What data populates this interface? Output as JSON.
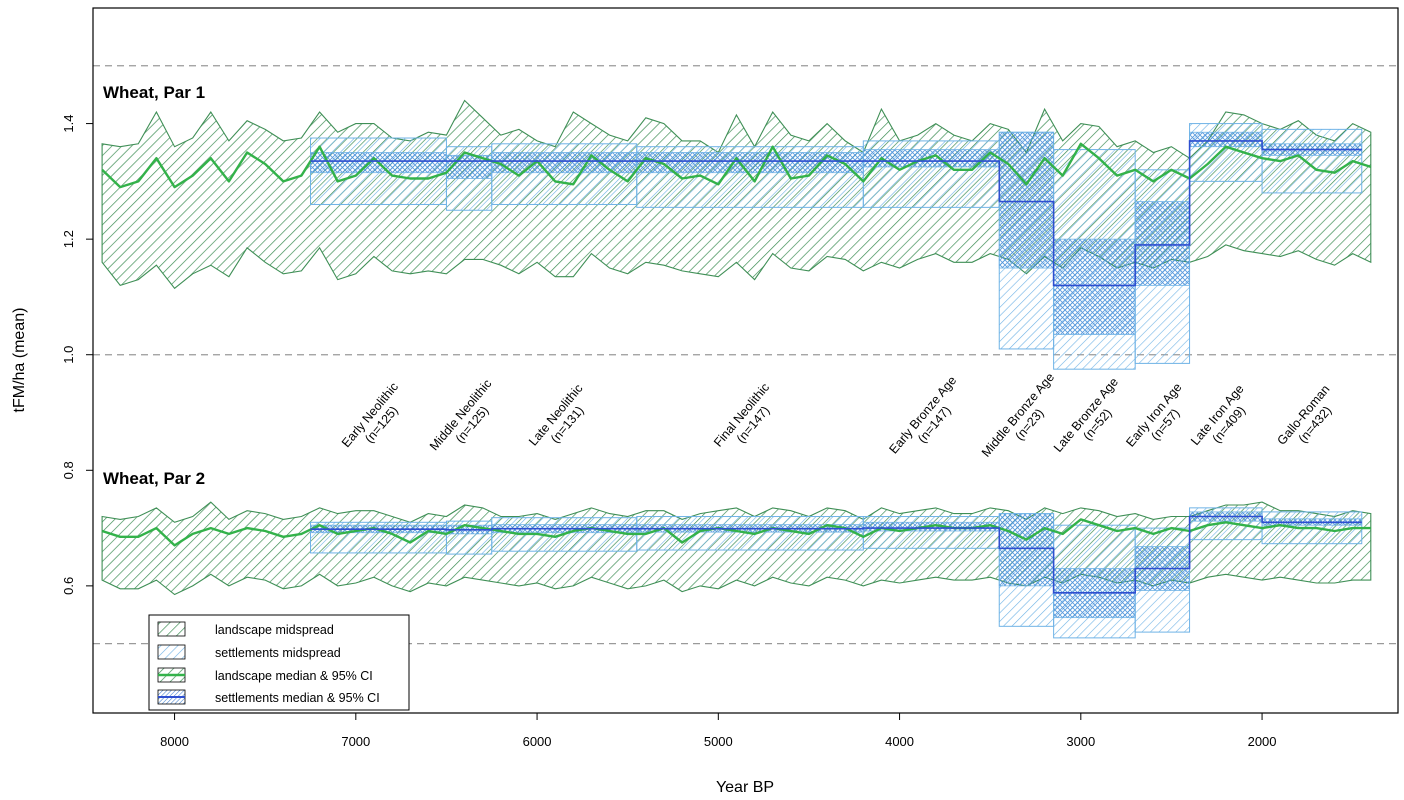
{
  "chart_data": {
    "type": "area",
    "xlabel": "Year BP",
    "ylabel": "tFM/ha (mean)",
    "xlim": [
      8450,
      1250
    ],
    "ylim": [
      0.38,
      1.6
    ],
    "x_reversed": true,
    "x_ticks": [
      8000,
      7000,
      6000,
      5000,
      4000,
      3000,
      2000
    ],
    "x_tick_labels": [
      "8000",
      "7000",
      "6000",
      "5000",
      "4000",
      "3000",
      "2000"
    ],
    "y_ticks": [
      0.6,
      0.8,
      1.0,
      1.2,
      1.4
    ],
    "y_tick_labels": [
      "0.6",
      "0.8",
      "1.0",
      "1.2",
      "1.4"
    ],
    "reference_lines": [
      0.5,
      1.0,
      1.5
    ],
    "colors": {
      "landscape_fill": "#3f8f56",
      "landscape_line": "#33b24a",
      "settlement_fill": "#6fb3e6",
      "settlement_line": "#2e4fd0",
      "reference": "#9a9a9a"
    },
    "periods": [
      {
        "name": "Early Neolithic",
        "n": "(n=125)",
        "start": 7250,
        "end": 6500
      },
      {
        "name": "Middle Neolithic",
        "n": "(n=125)",
        "start": 6500,
        "end": 6250
      },
      {
        "name": "Late Neolithic",
        "n": "(n=131)",
        "start": 6250,
        "end": 5450
      },
      {
        "name": "Final Neolithic",
        "n": "(n=147)",
        "start": 5450,
        "end": 4200
      },
      {
        "name": "Early Bronze Age",
        "n": "(n=147)",
        "start": 4200,
        "end": 3450
      },
      {
        "name": "Middle Bronze Age",
        "n": "(n=23)",
        "start": 3450,
        "end": 3150
      },
      {
        "name": "Late Bronze Age",
        "n": "(n=52)",
        "start": 3150,
        "end": 2700
      },
      {
        "name": "Early Iron Age",
        "n": "(n=57)",
        "start": 2700,
        "end": 2400
      },
      {
        "name": "Late Iron Age",
        "n": "(n=409)",
        "start": 2400,
        "end": 2000
      },
      {
        "name": "Gallo-Roman",
        "n": "(n=432)",
        "start": 2000,
        "end": 1450
      }
    ],
    "panels": [
      {
        "label": "Wheat, Par 1",
        "landscape": {
          "x": [
            8400,
            8300,
            8200,
            8100,
            8000,
            7900,
            7800,
            7700,
            7600,
            7500,
            7400,
            7300,
            7200,
            7100,
            7000,
            6900,
            6800,
            6700,
            6600,
            6500,
            6400,
            6300,
            6200,
            6100,
            6000,
            5900,
            5800,
            5700,
            5600,
            5500,
            5400,
            5300,
            5200,
            5100,
            5000,
            4900,
            4800,
            4700,
            4600,
            4500,
            4400,
            4300,
            4200,
            4100,
            4000,
            3900,
            3800,
            3700,
            3600,
            3500,
            3400,
            3300,
            3200,
            3100,
            3000,
            2900,
            2800,
            2700,
            2600,
            2500,
            2400,
            2300,
            2200,
            2100,
            2000,
            1900,
            1800,
            1700,
            1600,
            1500,
            1400
          ],
          "median": [
            1.32,
            1.29,
            1.3,
            1.34,
            1.29,
            1.31,
            1.34,
            1.3,
            1.35,
            1.33,
            1.3,
            1.31,
            1.36,
            1.3,
            1.31,
            1.34,
            1.31,
            1.305,
            1.305,
            1.315,
            1.35,
            1.34,
            1.33,
            1.31,
            1.335,
            1.3,
            1.295,
            1.345,
            1.32,
            1.3,
            1.34,
            1.33,
            1.305,
            1.31,
            1.295,
            1.34,
            1.3,
            1.36,
            1.305,
            1.31,
            1.345,
            1.33,
            1.3,
            1.34,
            1.32,
            1.335,
            1.345,
            1.32,
            1.32,
            1.35,
            1.33,
            1.295,
            1.34,
            1.31,
            1.365,
            1.34,
            1.31,
            1.32,
            1.3,
            1.32,
            1.305,
            1.33,
            1.36,
            1.35,
            1.34,
            1.335,
            1.345,
            1.32,
            1.315,
            1.335,
            1.325
          ],
          "upper": [
            1.365,
            1.36,
            1.365,
            1.42,
            1.36,
            1.375,
            1.42,
            1.37,
            1.405,
            1.39,
            1.37,
            1.375,
            1.42,
            1.385,
            1.4,
            1.4,
            1.375,
            1.37,
            1.385,
            1.38,
            1.44,
            1.41,
            1.38,
            1.39,
            1.37,
            1.36,
            1.42,
            1.4,
            1.38,
            1.37,
            1.41,
            1.4,
            1.37,
            1.37,
            1.35,
            1.415,
            1.36,
            1.42,
            1.38,
            1.37,
            1.4,
            1.37,
            1.35,
            1.425,
            1.37,
            1.38,
            1.4,
            1.38,
            1.37,
            1.4,
            1.39,
            1.35,
            1.425,
            1.37,
            1.4,
            1.395,
            1.36,
            1.37,
            1.35,
            1.36,
            1.34,
            1.37,
            1.42,
            1.415,
            1.4,
            1.39,
            1.405,
            1.38,
            1.37,
            1.4,
            1.385
          ],
          "lower": [
            1.16,
            1.12,
            1.13,
            1.155,
            1.115,
            1.14,
            1.155,
            1.135,
            1.185,
            1.16,
            1.14,
            1.145,
            1.185,
            1.13,
            1.14,
            1.17,
            1.145,
            1.14,
            1.145,
            1.14,
            1.165,
            1.165,
            1.155,
            1.14,
            1.16,
            1.135,
            1.135,
            1.175,
            1.15,
            1.14,
            1.16,
            1.155,
            1.145,
            1.14,
            1.135,
            1.16,
            1.13,
            1.175,
            1.15,
            1.145,
            1.17,
            1.165,
            1.145,
            1.16,
            1.15,
            1.165,
            1.175,
            1.16,
            1.16,
            1.175,
            1.165,
            1.14,
            1.17,
            1.15,
            1.185,
            1.17,
            1.15,
            1.16,
            1.15,
            1.165,
            1.16,
            1.17,
            1.19,
            1.18,
            1.175,
            1.17,
            1.18,
            1.165,
            1.155,
            1.175,
            1.16
          ]
        },
        "settlements": [
          {
            "median": 1.335,
            "q_low": 1.26,
            "q_high": 1.375,
            "ci_low": 1.315,
            "ci_high": 1.35
          },
          {
            "median": 1.335,
            "q_low": 1.25,
            "q_high": 1.36,
            "ci_low": 1.305,
            "ci_high": 1.345
          },
          {
            "median": 1.335,
            "q_low": 1.26,
            "q_high": 1.365,
            "ci_low": 1.315,
            "ci_high": 1.35
          },
          {
            "median": 1.335,
            "q_low": 1.255,
            "q_high": 1.36,
            "ci_low": 1.315,
            "ci_high": 1.35
          },
          {
            "median": 1.335,
            "q_low": 1.255,
            "q_high": 1.37,
            "ci_low": 1.325,
            "ci_high": 1.355
          },
          {
            "median": 1.265,
            "q_low": 1.01,
            "q_high": 1.385,
            "ci_low": 1.15,
            "ci_high": 1.385
          },
          {
            "median": 1.12,
            "q_low": 0.975,
            "q_high": 1.355,
            "ci_low": 1.035,
            "ci_high": 1.2
          },
          {
            "median": 1.19,
            "q_low": 0.985,
            "q_high": 1.32,
            "ci_low": 1.12,
            "ci_high": 1.265
          },
          {
            "median": 1.37,
            "q_low": 1.3,
            "q_high": 1.4,
            "ci_low": 1.36,
            "ci_high": 1.385
          },
          {
            "median": 1.355,
            "q_low": 1.28,
            "q_high": 1.39,
            "ci_low": 1.345,
            "ci_high": 1.365
          }
        ]
      },
      {
        "label": "Wheat, Par 2",
        "landscape": {
          "x": [
            8400,
            8300,
            8200,
            8100,
            8000,
            7900,
            7800,
            7700,
            7600,
            7500,
            7400,
            7300,
            7200,
            7100,
            7000,
            6900,
            6800,
            6700,
            6600,
            6500,
            6400,
            6300,
            6200,
            6100,
            6000,
            5900,
            5800,
            5700,
            5600,
            5500,
            5400,
            5300,
            5200,
            5100,
            5000,
            4900,
            4800,
            4700,
            4600,
            4500,
            4400,
            4300,
            4200,
            4100,
            4000,
            3900,
            3800,
            3700,
            3600,
            3500,
            3400,
            3300,
            3200,
            3100,
            3000,
            2900,
            2800,
            2700,
            2600,
            2500,
            2400,
            2300,
            2200,
            2100,
            2000,
            1900,
            1800,
            1700,
            1600,
            1500,
            1400
          ],
          "median": [
            0.695,
            0.685,
            0.685,
            0.7,
            0.67,
            0.69,
            0.7,
            0.69,
            0.7,
            0.695,
            0.685,
            0.69,
            0.705,
            0.69,
            0.695,
            0.7,
            0.69,
            0.675,
            0.695,
            0.69,
            0.705,
            0.7,
            0.695,
            0.69,
            0.69,
            0.685,
            0.695,
            0.7,
            0.695,
            0.69,
            0.69,
            0.7,
            0.675,
            0.695,
            0.7,
            0.695,
            0.69,
            0.7,
            0.695,
            0.69,
            0.705,
            0.7,
            0.685,
            0.7,
            0.695,
            0.7,
            0.705,
            0.7,
            0.7,
            0.705,
            0.695,
            0.68,
            0.7,
            0.69,
            0.715,
            0.705,
            0.695,
            0.7,
            0.69,
            0.7,
            0.695,
            0.705,
            0.71,
            0.705,
            0.7,
            0.705,
            0.7,
            0.7,
            0.695,
            0.7,
            0.7
          ],
          "upper": [
            0.72,
            0.715,
            0.72,
            0.735,
            0.71,
            0.72,
            0.745,
            0.715,
            0.73,
            0.725,
            0.715,
            0.72,
            0.735,
            0.725,
            0.73,
            0.73,
            0.72,
            0.71,
            0.725,
            0.72,
            0.74,
            0.735,
            0.72,
            0.72,
            0.725,
            0.715,
            0.725,
            0.735,
            0.725,
            0.72,
            0.73,
            0.73,
            0.715,
            0.725,
            0.73,
            0.735,
            0.72,
            0.735,
            0.73,
            0.72,
            0.735,
            0.73,
            0.715,
            0.735,
            0.725,
            0.73,
            0.735,
            0.725,
            0.725,
            0.735,
            0.73,
            0.715,
            0.735,
            0.725,
            0.735,
            0.73,
            0.72,
            0.725,
            0.715,
            0.72,
            0.72,
            0.73,
            0.74,
            0.74,
            0.745,
            0.73,
            0.73,
            0.725,
            0.72,
            0.73,
            0.725
          ],
          "lower": [
            0.61,
            0.595,
            0.595,
            0.61,
            0.585,
            0.6,
            0.62,
            0.6,
            0.615,
            0.61,
            0.595,
            0.6,
            0.62,
            0.6,
            0.605,
            0.615,
            0.6,
            0.59,
            0.605,
            0.6,
            0.615,
            0.61,
            0.605,
            0.6,
            0.605,
            0.595,
            0.6,
            0.615,
            0.605,
            0.595,
            0.6,
            0.61,
            0.59,
            0.6,
            0.595,
            0.61,
            0.6,
            0.615,
            0.605,
            0.6,
            0.615,
            0.61,
            0.6,
            0.61,
            0.605,
            0.61,
            0.615,
            0.61,
            0.61,
            0.615,
            0.605,
            0.6,
            0.615,
            0.605,
            0.62,
            0.615,
            0.605,
            0.61,
            0.6,
            0.61,
            0.605,
            0.615,
            0.62,
            0.615,
            0.61,
            0.615,
            0.61,
            0.605,
            0.605,
            0.61,
            0.61
          ]
        },
        "settlements": [
          {
            "median": 0.698,
            "q_low": 0.657,
            "q_high": 0.71,
            "ci_low": 0.692,
            "ci_high": 0.705
          },
          {
            "median": 0.697,
            "q_low": 0.655,
            "q_high": 0.712,
            "ci_low": 0.69,
            "ci_high": 0.705
          },
          {
            "median": 0.699,
            "q_low": 0.66,
            "q_high": 0.718,
            "ci_low": 0.692,
            "ci_high": 0.706
          },
          {
            "median": 0.699,
            "q_low": 0.662,
            "q_high": 0.72,
            "ci_low": 0.693,
            "ci_high": 0.706
          },
          {
            "median": 0.7,
            "q_low": 0.665,
            "q_high": 0.72,
            "ci_low": 0.695,
            "ci_high": 0.71
          },
          {
            "median": 0.665,
            "q_low": 0.53,
            "q_high": 0.725,
            "ci_low": 0.6,
            "ci_high": 0.725
          },
          {
            "median": 0.588,
            "q_low": 0.51,
            "q_high": 0.705,
            "ci_low": 0.545,
            "ci_high": 0.63
          },
          {
            "median": 0.63,
            "q_low": 0.52,
            "q_high": 0.7,
            "ci_low": 0.592,
            "ci_high": 0.668
          },
          {
            "median": 0.72,
            "q_low": 0.68,
            "q_high": 0.735,
            "ci_low": 0.712,
            "ci_high": 0.728
          },
          {
            "median": 0.71,
            "q_low": 0.673,
            "q_high": 0.728,
            "ci_low": 0.705,
            "ci_high": 0.716
          }
        ]
      }
    ],
    "legend": {
      "position": "bottom-left",
      "entries": [
        {
          "label": "landscape midspread",
          "kind": "landscape-band"
        },
        {
          "label": "settlements midspread",
          "kind": "settlement-band"
        },
        {
          "label": "landscape median & 95% CI",
          "kind": "landscape-median"
        },
        {
          "label": "settlements median & 95% CI",
          "kind": "settlement-median"
        }
      ]
    }
  }
}
